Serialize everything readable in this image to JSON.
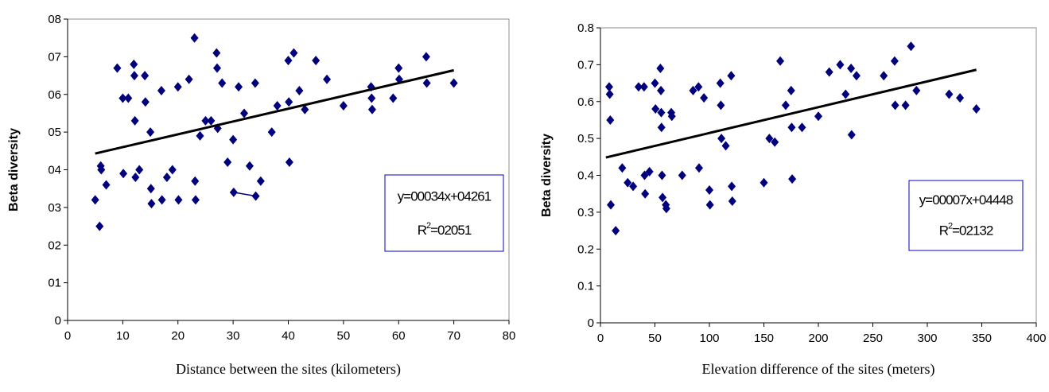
{
  "chart_data": [
    {
      "type": "scatter",
      "xlabel": "Distance between the sites (kilometers)",
      "ylabel": "Beta diversity",
      "xlim": [
        0,
        80
      ],
      "ylim": [
        0,
        0.8
      ],
      "xticks": [
        0,
        10,
        20,
        30,
        40,
        50,
        60,
        70,
        80
      ],
      "xtick_labels": [
        "0",
        "10",
        "20",
        "30",
        "40",
        "50",
        "60",
        "70",
        "80"
      ],
      "yticks": [
        0,
        0.1,
        0.2,
        0.3,
        0.4,
        0.5,
        0.6,
        0.7,
        0.8
      ],
      "ytick_labels": [
        "0",
        "01",
        "02",
        "03",
        "04",
        "05",
        "06",
        "07",
        "08"
      ],
      "marker_color": "#00007f",
      "trendline": {
        "slope": 0.0034,
        "intercept": 0.4261,
        "x_range": [
          5,
          70
        ],
        "color": "#000000"
      },
      "equation_text": "y=00034x+04261",
      "r2_text": "R",
      "r2_sup": "2",
      "r2_value_text": "=02051",
      "legend_box_color": "#0000cc",
      "points": [
        [
          5,
          0.32
        ],
        [
          5.8,
          0.25
        ],
        [
          6,
          0.41
        ],
        [
          6.1,
          0.4
        ],
        [
          7,
          0.36
        ],
        [
          9,
          0.67
        ],
        [
          10,
          0.59
        ],
        [
          10.1,
          0.39
        ],
        [
          11,
          0.59
        ],
        [
          12,
          0.68
        ],
        [
          12.1,
          0.65
        ],
        [
          12.2,
          0.53
        ],
        [
          12.3,
          0.38
        ],
        [
          13,
          0.4
        ],
        [
          14,
          0.65
        ],
        [
          14.1,
          0.58
        ],
        [
          15,
          0.5
        ],
        [
          15.1,
          0.35
        ],
        [
          15.2,
          0.31
        ],
        [
          17,
          0.61
        ],
        [
          17.1,
          0.32
        ],
        [
          18,
          0.38
        ],
        [
          19,
          0.4
        ],
        [
          20,
          0.62
        ],
        [
          20.1,
          0.32
        ],
        [
          22,
          0.64
        ],
        [
          23,
          0.75
        ],
        [
          23.1,
          0.37
        ],
        [
          23.2,
          0.32
        ],
        [
          24,
          0.49
        ],
        [
          25,
          0.53
        ],
        [
          26,
          0.53
        ],
        [
          27,
          0.71
        ],
        [
          27.1,
          0.67
        ],
        [
          27.2,
          0.51
        ],
        [
          28,
          0.63
        ],
        [
          29,
          0.42
        ],
        [
          30,
          0.48
        ],
        [
          30.1,
          0.34
        ],
        [
          31,
          0.62
        ],
        [
          32,
          0.55
        ],
        [
          33,
          0.41
        ],
        [
          34,
          0.63
        ],
        [
          34.1,
          0.33
        ],
        [
          35,
          0.37
        ],
        [
          37,
          0.5
        ],
        [
          38,
          0.57
        ],
        [
          40,
          0.69
        ],
        [
          40.1,
          0.58
        ],
        [
          40.2,
          0.42
        ],
        [
          41,
          0.71
        ],
        [
          42,
          0.61
        ],
        [
          43,
          0.56
        ],
        [
          45,
          0.69
        ],
        [
          47,
          0.64
        ],
        [
          50,
          0.57
        ],
        [
          55,
          0.62
        ],
        [
          55.1,
          0.59
        ],
        [
          55.2,
          0.56
        ],
        [
          59,
          0.59
        ],
        [
          60,
          0.67
        ],
        [
          60.1,
          0.64
        ],
        [
          65,
          0.7
        ],
        [
          65.1,
          0.63
        ],
        [
          70,
          0.63
        ]
      ],
      "connector": [
        [
          30.1,
          0.34
        ],
        [
          34.1,
          0.33
        ]
      ]
    },
    {
      "type": "scatter",
      "xlabel": "Elevation difference of the sites (meters)",
      "ylabel": "Beta diversity",
      "xlim": [
        0,
        400
      ],
      "ylim": [
        0,
        0.8
      ],
      "xticks": [
        0,
        50,
        100,
        150,
        200,
        250,
        300,
        350,
        400
      ],
      "xtick_labels": [
        "0",
        "50",
        "100",
        "150",
        "200",
        "250",
        "300",
        "350",
        "400"
      ],
      "yticks": [
        0,
        0.1,
        0.2,
        0.3,
        0.4,
        0.5,
        0.6,
        0.7,
        0.8
      ],
      "ytick_labels": [
        "0",
        "0.1",
        "0.2",
        "0.3",
        "0.4",
        "0.5",
        "0.6",
        "0.7",
        "0.8"
      ],
      "marker_color": "#00007f",
      "trendline": {
        "slope": 0.0007,
        "intercept": 0.4448,
        "x_range": [
          5,
          345
        ],
        "color": "#000000"
      },
      "equation_text": "y=00007x+04448",
      "r2_text": "R",
      "r2_sup": "2",
      "r2_value_text": "=02132",
      "legend_box_color": "#0000cc",
      "points": [
        [
          8,
          0.64
        ],
        [
          8.5,
          0.62
        ],
        [
          9,
          0.55
        ],
        [
          9.5,
          0.32
        ],
        [
          14,
          0.25
        ],
        [
          20,
          0.42
        ],
        [
          25,
          0.38
        ],
        [
          30,
          0.37
        ],
        [
          35,
          0.64
        ],
        [
          40,
          0.64
        ],
        [
          40.5,
          0.4
        ],
        [
          41,
          0.35
        ],
        [
          45,
          0.41
        ],
        [
          50,
          0.65
        ],
        [
          50.5,
          0.58
        ],
        [
          55,
          0.69
        ],
        [
          55.5,
          0.63
        ],
        [
          55.8,
          0.57
        ],
        [
          56,
          0.53
        ],
        [
          56.5,
          0.4
        ],
        [
          57,
          0.34
        ],
        [
          60,
          0.32
        ],
        [
          60.5,
          0.31
        ],
        [
          65,
          0.57
        ],
        [
          65.5,
          0.56
        ],
        [
          75,
          0.4
        ],
        [
          85,
          0.63
        ],
        [
          90,
          0.64
        ],
        [
          90.5,
          0.42
        ],
        [
          95,
          0.61
        ],
        [
          100,
          0.36
        ],
        [
          100.5,
          0.32
        ],
        [
          110,
          0.65
        ],
        [
          110.5,
          0.59
        ],
        [
          111,
          0.5
        ],
        [
          115,
          0.48
        ],
        [
          120,
          0.67
        ],
        [
          120.5,
          0.37
        ],
        [
          121,
          0.33
        ],
        [
          150,
          0.38
        ],
        [
          155,
          0.5
        ],
        [
          160,
          0.49
        ],
        [
          165,
          0.71
        ],
        [
          170,
          0.59
        ],
        [
          175,
          0.63
        ],
        [
          175.5,
          0.53
        ],
        [
          176,
          0.39
        ],
        [
          185,
          0.53
        ],
        [
          200,
          0.56
        ],
        [
          210,
          0.68
        ],
        [
          220,
          0.7
        ],
        [
          225,
          0.62
        ],
        [
          230,
          0.69
        ],
        [
          230.5,
          0.51
        ],
        [
          235,
          0.67
        ],
        [
          260,
          0.67
        ],
        [
          270,
          0.71
        ],
        [
          270.5,
          0.59
        ],
        [
          280,
          0.59
        ],
        [
          285,
          0.75
        ],
        [
          290,
          0.63
        ],
        [
          320,
          0.62
        ],
        [
          330,
          0.61
        ],
        [
          345,
          0.58
        ]
      ]
    }
  ]
}
